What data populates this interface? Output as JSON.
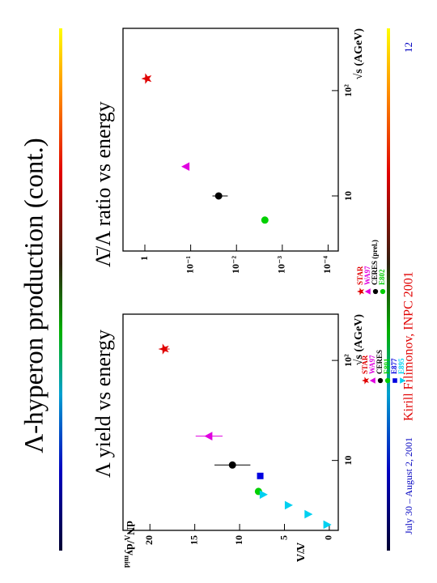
{
  "slide": {
    "title": "Λ-hyperon production (cont.)",
    "date": "July 30 – August 2, 2001",
    "author": "Kirill Filimonov, INPC 2001",
    "page": 12
  },
  "chart_data": [
    {
      "type": "scatter",
      "title": "Λ yield vs energy",
      "x_label": "√s (AGeV)",
      "y_label": [
        "dN",
        "Λ",
        "/dy",
        "mid"
      ],
      "xscale": "log",
      "yscale": "linear",
      "xlim": [
        2,
        290
      ],
      "ylim": [
        -1,
        23
      ],
      "xticks": [
        10,
        {
          "value": 100,
          "label": "10²"
        }
      ],
      "yticks": [
        0,
        5,
        10,
        15,
        20
      ],
      "series": [
        {
          "name": "STAR",
          "color": "#e00000",
          "marker": "star",
          "x": [
            130
          ],
          "values": [
            18.4
          ],
          "errors": [
            0.6
          ]
        },
        {
          "name": "WA97",
          "color": "#e000e0",
          "marker": "triangle-up",
          "x": [
            17.5
          ],
          "values": [
            13.4
          ],
          "errors": [
            1.5
          ]
        },
        {
          "name": "CERES",
          "color": "#000000",
          "marker": "circle",
          "x": [
            9
          ],
          "values": [
            10.8
          ],
          "errors": [
            2
          ]
        },
        {
          "name": "E891",
          "color": "#00d000",
          "marker": "circle",
          "x": [
            4.9
          ],
          "values": [
            7.9
          ]
        },
        {
          "name": "E877",
          "color": "#0000e0",
          "marker": "square",
          "x": [
            7
          ],
          "values": [
            7.7
          ]
        },
        {
          "name": "E895",
          "color": "#00d0f0",
          "marker": "triangle-down",
          "x": [
            4.56,
            3.57,
            2.9,
            2.28
          ],
          "values": [
            7.4,
            4.6,
            2.4,
            0.3
          ]
        }
      ]
    },
    {
      "type": "scatter",
      "title": "Λ̄/Λ ratio vs energy",
      "x_label": "√s (AGeV)",
      "y_label": [
        "Λ̄/Λ"
      ],
      "xscale": "log",
      "yscale": "log",
      "xlim": [
        3,
        390
      ],
      "ylim": [
        6e-05,
        3
      ],
      "xticks": [
        10,
        {
          "value": 100,
          "label": "10²"
        }
      ],
      "yticks": [
        1,
        {
          "value": 0.1,
          "label": "10⁻¹"
        },
        {
          "value": 0.01,
          "label": "10⁻²"
        },
        {
          "value": 0.001,
          "label": "10⁻³"
        },
        {
          "value": 0.0001,
          "label": "10⁻⁴"
        }
      ],
      "series": [
        {
          "name": "STAR",
          "color": "#e00000",
          "marker": "star",
          "x": [
            130
          ],
          "values": [
            0.9
          ]
        },
        {
          "name": "WA97",
          "color": "#e000e0",
          "marker": "triangle-up",
          "x": [
            19
          ],
          "values": [
            0.125
          ]
        },
        {
          "name": "CERES (prel.)",
          "color": "#000000",
          "marker": "circle",
          "x": [
            10
          ],
          "values": [
            0.0245
          ],
          "errors": [
            0.009
          ]
        },
        {
          "name": "E802",
          "color": "#00d000",
          "marker": "circle",
          "x": [
            5.9
          ],
          "values": [
            0.0024
          ]
        }
      ]
    }
  ]
}
